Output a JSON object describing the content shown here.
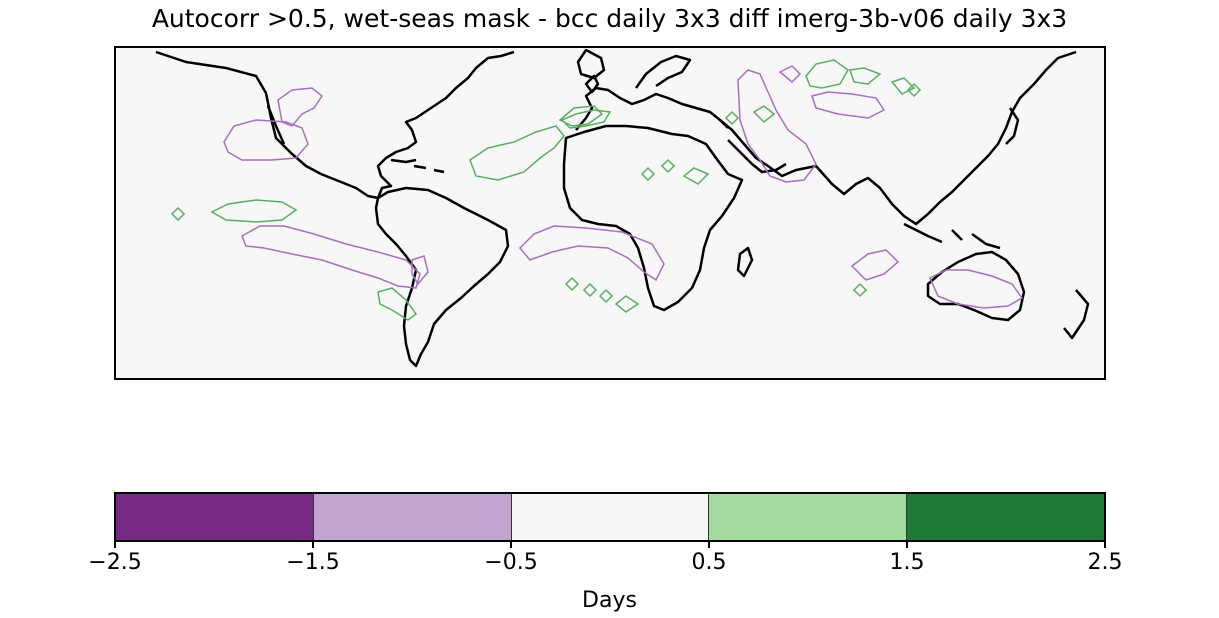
{
  "title": "Autocorr >0.5, wet-seas mask - bcc daily 3x3 diff imerg-3b-v06 daily 3x3",
  "map": {
    "background": "#f7f7f7",
    "coastline_color": "#000000",
    "contour_colors": {
      "negative": "#c2a5cf",
      "positive": "#5aae61"
    }
  },
  "colorbar": {
    "label": "Days",
    "colors": [
      "#762a83",
      "#c2a5cf",
      "#f7f7f7",
      "#a6dba0",
      "#1b7837"
    ],
    "ticks": [
      "−2.5",
      "−1.5",
      "−0.5",
      "0.5",
      "1.5",
      "2.5"
    ],
    "range": [
      -2.5,
      2.5
    ]
  }
}
